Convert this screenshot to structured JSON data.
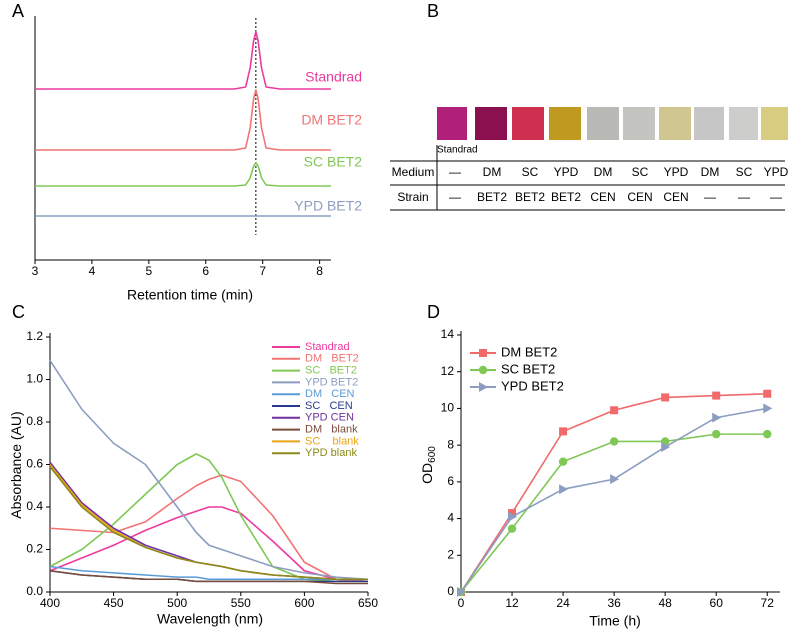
{
  "chart_data": [
    {
      "type": "line",
      "label": "A",
      "xlabel": "Retention time (min)",
      "legend": "inline",
      "xlim": [
        3,
        8.2
      ],
      "xticks": [
        3,
        4,
        5,
        6,
        7,
        8
      ],
      "ylim": [
        0,
        240
      ],
      "vline": 6.88,
      "x": [
        3,
        6.5,
        6.7,
        6.78,
        6.84,
        6.88,
        6.92,
        6.98,
        7.06,
        7.3,
        8.2
      ],
      "series": [
        {
          "name": "Standrad",
          "color": "#ec3a9e",
          "values": [
            171,
            171,
            173,
            192,
            219,
            228,
            219,
            192,
            173,
            171,
            171
          ]
        },
        {
          "name": "DM BET2",
          "color": "#f27474",
          "values": [
            110,
            110,
            112,
            132,
            161,
            170,
            161,
            132,
            112,
            110,
            110
          ]
        },
        {
          "name": "SC BET2",
          "color": "#80c855",
          "values": [
            74,
            74,
            75,
            82,
            94,
            97,
            94,
            82,
            75,
            74,
            74
          ]
        },
        {
          "name": "YPD BET2",
          "color": "#8c9dc0",
          "values": [
            44,
            44,
            44,
            44,
            44,
            44,
            44,
            44,
            44,
            44,
            44
          ]
        }
      ]
    },
    {
      "type": "line",
      "label": "C",
      "xlabel": "Wavelength (nm)",
      "ylabel": "Absorbance (AU)",
      "legend": "upper right",
      "xlim": [
        400,
        650
      ],
      "xticks": [
        400,
        450,
        500,
        550,
        600,
        650
      ],
      "ylim": [
        0,
        1.2
      ],
      "yticks": [
        {
          "value": 0,
          "label": "0.0"
        },
        0.2,
        0.4,
        0.6,
        0.8,
        {
          "value": 1,
          "label": "1.0"
        },
        1.2
      ],
      "x": [
        400,
        425,
        450,
        475,
        500,
        515,
        525,
        535,
        550,
        575,
        600,
        625,
        650
      ],
      "series": [
        {
          "name": "Standrad",
          "color": "#ec3a9e",
          "values": [
            0.1,
            0.16,
            0.22,
            0.29,
            0.35,
            0.38,
            0.4,
            0.4,
            0.37,
            0.24,
            0.1,
            0.06,
            0.05
          ]
        },
        {
          "name": "DM   BET2",
          "color": "#f27474",
          "values": [
            0.3,
            0.29,
            0.28,
            0.33,
            0.44,
            0.5,
            0.53,
            0.55,
            0.52,
            0.36,
            0.14,
            0.06,
            0.05
          ]
        },
        {
          "name": "SC   BET2",
          "color": "#80c855",
          "values": [
            0.12,
            0.2,
            0.32,
            0.46,
            0.6,
            0.65,
            0.62,
            0.54,
            0.36,
            0.12,
            0.06,
            0.05,
            0.05
          ]
        },
        {
          "name": "YPD BET2",
          "color": "#8c9dc0",
          "values": [
            1.09,
            0.86,
            0.7,
            0.6,
            0.4,
            0.28,
            0.22,
            0.2,
            0.17,
            0.12,
            0.09,
            0.07,
            0.06
          ]
        },
        {
          "name": "DM   CEN",
          "color": "#5b9bd5",
          "values": [
            0.12,
            0.1,
            0.09,
            0.08,
            0.07,
            0.07,
            0.06,
            0.06,
            0.06,
            0.06,
            0.06,
            0.06,
            0.06
          ]
        },
        {
          "name": "SC   CEN",
          "color": "#2b3a8f",
          "values": [
            0.1,
            0.08,
            0.07,
            0.06,
            0.06,
            0.05,
            0.05,
            0.05,
            0.05,
            0.05,
            0.05,
            0.05,
            0.05
          ]
        },
        {
          "name": "YPD CEN",
          "color": "#7030a0",
          "values": [
            0.61,
            0.42,
            0.3,
            0.22,
            0.17,
            0.14,
            0.13,
            0.12,
            0.1,
            0.08,
            0.07,
            0.06,
            0.06
          ]
        },
        {
          "name": "DM   blank",
          "color": "#7b4b3a",
          "values": [
            0.1,
            0.08,
            0.07,
            0.06,
            0.06,
            0.05,
            0.05,
            0.05,
            0.05,
            0.05,
            0.05,
            0.04,
            0.04
          ]
        },
        {
          "name": "SC    blank",
          "color": "#e8a317",
          "values": [
            0.6,
            0.41,
            0.29,
            0.21,
            0.16,
            0.14,
            0.13,
            0.12,
            0.1,
            0.08,
            0.07,
            0.06,
            0.06
          ]
        },
        {
          "name": "YPD blank",
          "color": "#8a8a1a",
          "values": [
            0.59,
            0.4,
            0.28,
            0.21,
            0.16,
            0.14,
            0.13,
            0.12,
            0.1,
            0.08,
            0.07,
            0.06,
            0.06
          ]
        }
      ]
    },
    {
      "type": "line",
      "label": "D",
      "xlabel": "Time (h)",
      "ylabel": "OD",
      "ylabel_subscript": "600",
      "legend": "upper left",
      "xlim": [
        0,
        75
      ],
      "xticks": [
        0,
        12,
        24,
        36,
        48,
        60,
        72
      ],
      "ylim": [
        0,
        14
      ],
      "yticks": [
        0,
        2,
        4,
        6,
        8,
        10,
        12,
        14
      ],
      "x": [
        0,
        12,
        24,
        36,
        48,
        60,
        72
      ],
      "series": [
        {
          "name": "DM BET2",
          "color": "#f06a6a",
          "marker": "square",
          "values": [
            0,
            4.3,
            8.75,
            9.9,
            10.6,
            10.7,
            10.8
          ]
        },
        {
          "name": "SC BET2",
          "color": "#80c855",
          "marker": "circle",
          "values": [
            0,
            3.45,
            7.1,
            8.2,
            8.2,
            8.6,
            8.6
          ]
        },
        {
          "name": "YPD BET2",
          "color": "#8c9dc0",
          "marker": "triangle-right",
          "values": [
            0,
            4.1,
            5.6,
            6.15,
            7.9,
            9.5,
            10.0
          ]
        }
      ]
    }
  ],
  "panel_b": {
    "label": "B",
    "image_label": "Standrad",
    "rows": [
      {
        "header": "Medium",
        "cells": [
          "—",
          "DM",
          "SC",
          "YPD",
          "DM",
          "SC",
          "YPD",
          "DM",
          "SC",
          "YPD"
        ]
      },
      {
        "header": "Strain",
        "cells": [
          "—",
          "BET2",
          "BET2",
          "BET2",
          "CEN",
          "CEN",
          "CEN",
          "—",
          "—",
          "—"
        ]
      }
    ]
  }
}
